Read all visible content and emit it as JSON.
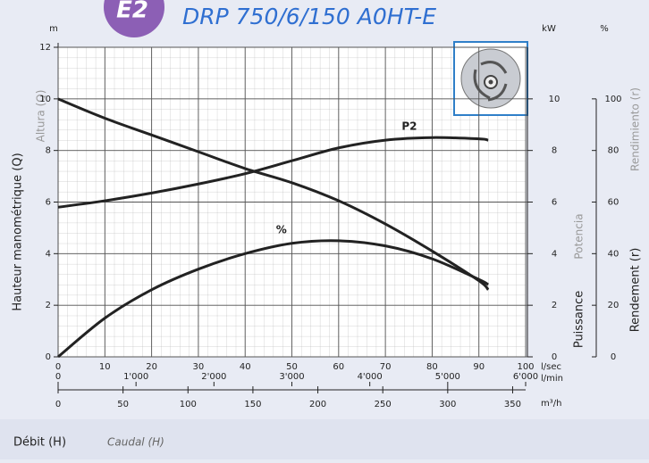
{
  "chart_data": {
    "type": "line",
    "badge": "E2",
    "title": "DRP 750/6/150 A0HT-E",
    "x": [
      0,
      10,
      20,
      30,
      40,
      50,
      60,
      70,
      80,
      90,
      92
    ],
    "series": [
      {
        "color": "#222222",
        "values": [
          10,
          9.25,
          8.6,
          7.95,
          7.3,
          6.75,
          6.05,
          5.15,
          4.1,
          2.95,
          2.6
        ]
      },
      {
        "name": "P2",
        "color": "#222222",
        "axis": "y2",
        "values": [
          5.8,
          6.05,
          6.35,
          6.7,
          7.1,
          7.6,
          8.1,
          8.4,
          8.5,
          8.45,
          8.4
        ]
      },
      {
        "name": "%",
        "color": "#222222",
        "axis": "y3",
        "values": [
          0,
          15,
          26,
          34,
          40,
          44,
          45,
          43,
          38,
          30,
          28
        ]
      }
    ],
    "xlim": [
      0,
      100
    ],
    "xticks": [
      0,
      10,
      20,
      30,
      40,
      50,
      60,
      70,
      80,
      90,
      100
    ],
    "x_unit": "l/sec",
    "x2lim": [
      0,
      6000
    ],
    "x2ticks": [
      0,
      {
        "value": 1000,
        "label": "1'000"
      },
      {
        "value": 2000,
        "label": "2'000"
      },
      {
        "value": 3000,
        "label": "3'000"
      },
      {
        "value": 4000,
        "label": "4'000"
      },
      {
        "value": 5000,
        "label": "5'000"
      },
      {
        "value": 6000,
        "label": "6'000"
      }
    ],
    "x2_unit": "l/min",
    "x3lim": [
      0,
      360
    ],
    "x3ticks": [
      0,
      50,
      100,
      150,
      200,
      250,
      300,
      350
    ],
    "x3_unit": "m³/h",
    "ylim": [
      0,
      12
    ],
    "yticks": [
      0,
      2,
      4,
      6,
      8,
      10,
      12
    ],
    "y_unit": "m",
    "y2lim": [
      0,
      12
    ],
    "y2ticks": [
      0,
      2,
      4,
      6,
      8,
      10
    ],
    "y2_unit": "kW",
    "y3lim": [
      0,
      120
    ],
    "y3ticks": [
      0,
      20,
      40,
      60,
      80,
      100
    ],
    "y3_unit": "%",
    "grid": true,
    "ylabel": "Hauteur manométrique (Q)",
    "ylabel_alt": "Altura (Q)",
    "y2label": "Puissance",
    "y2label_alt": "Potencia",
    "y3label": "Rendement (r)",
    "y3label_alt": "Rendimiento (r)",
    "xlabel": "Débit (H)",
    "xlabel_alt": "Caudal (H)"
  }
}
